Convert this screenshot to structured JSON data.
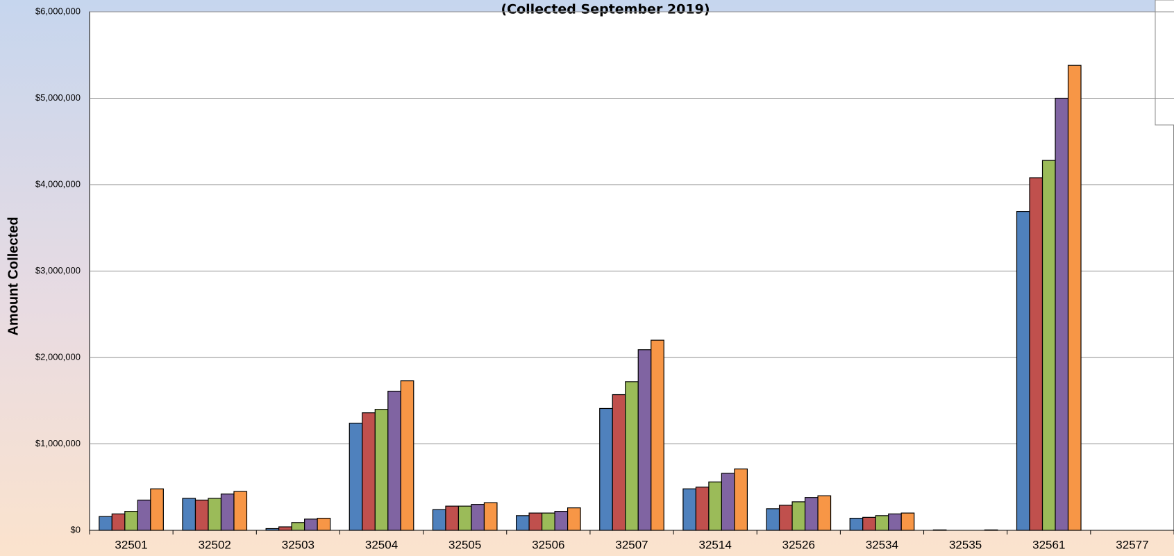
{
  "chart_data": {
    "type": "bar",
    "title": "(Collected September 2019)",
    "y_label": "Amount Collected",
    "categories": [
      "32501",
      "32502",
      "32503",
      "32504",
      "32505",
      "32506",
      "32507",
      "32514",
      "32526",
      "32534",
      "32535",
      "32561",
      "32577"
    ],
    "series": [
      {
        "color": "#4f81bd",
        "values": [
          160000,
          370000,
          20000,
          1240000,
          240000,
          170000,
          1410000,
          480000,
          250000,
          140000,
          5000,
          3690000,
          0
        ]
      },
      {
        "color": "#c0504d",
        "values": [
          190000,
          350000,
          40000,
          1360000,
          280000,
          200000,
          1570000,
          500000,
          290000,
          150000,
          0,
          4080000,
          0
        ]
      },
      {
        "color": "#9bbb59",
        "values": [
          220000,
          370000,
          90000,
          1400000,
          280000,
          200000,
          1720000,
          560000,
          330000,
          170000,
          0,
          4280000,
          0
        ]
      },
      {
        "color": "#8064a2",
        "values": [
          350000,
          420000,
          130000,
          1610000,
          300000,
          220000,
          2090000,
          660000,
          380000,
          190000,
          0,
          5000000,
          0
        ]
      },
      {
        "color": "#f79646",
        "values": [
          480000,
          450000,
          140000,
          1730000,
          320000,
          260000,
          2200000,
          710000,
          400000,
          200000,
          5000,
          5380000,
          0
        ]
      }
    ],
    "ylim": [
      0,
      6000000
    ],
    "yticks": [
      {
        "value": 0,
        "label": "$0"
      },
      {
        "value": 1000000,
        "label": "$1,000,000"
      },
      {
        "value": 2000000,
        "label": "$2,000,000"
      },
      {
        "value": 3000000,
        "label": "$3,000,000"
      },
      {
        "value": 4000000,
        "label": "$4,000,000"
      },
      {
        "value": 5000000,
        "label": "$5,000,000"
      },
      {
        "value": 6000000,
        "label": "$6,000,000"
      }
    ],
    "grid": true
  }
}
